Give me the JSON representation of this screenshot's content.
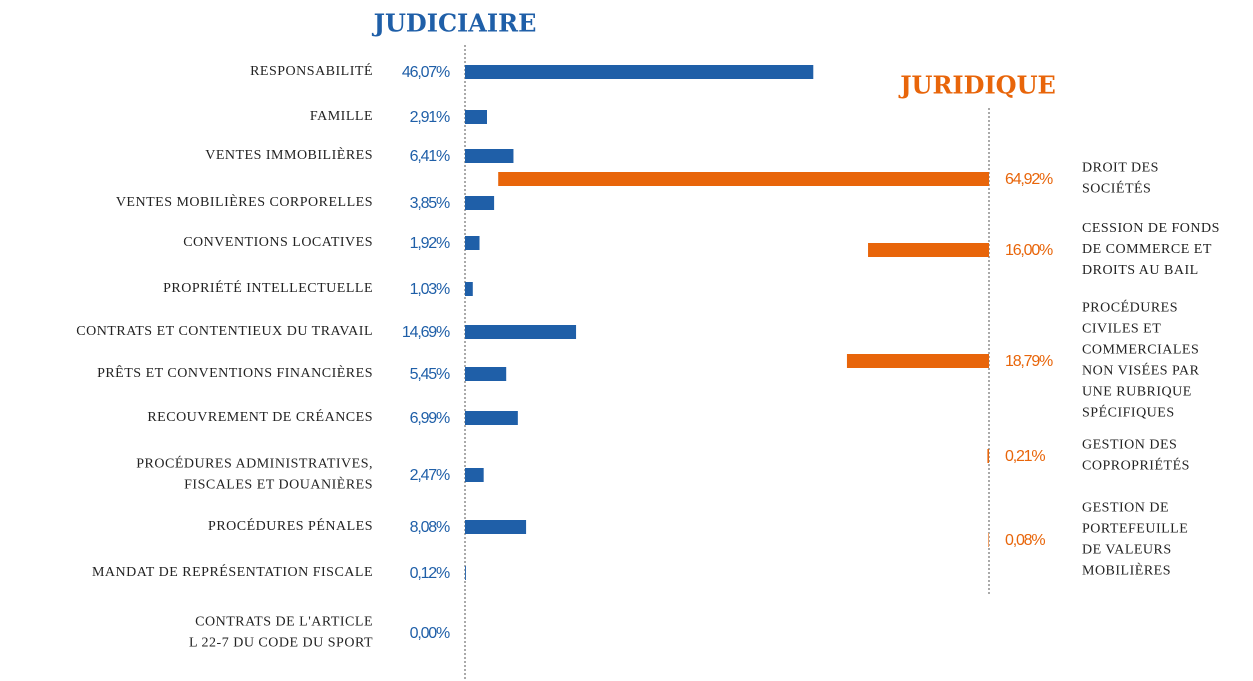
{
  "chart_data": [
    {
      "type": "bar",
      "title": "JUDICIAIRE",
      "color": "#1f5fa8",
      "categories": [
        "RESPONSABILITÉ",
        "FAMILLE",
        "VENTES IMMOBILIÈRES",
        "VENTES MOBILIÈRES CORPORELLES",
        "CONVENTIONS LOCATIVES",
        "PROPRIÉTÉ INTELLECTUELLE",
        "CONTRATS ET CONTENTIEUX DU TRAVAIL",
        "PRÊTS ET CONVENTIONS FINANCIÈRES",
        "RECOUVREMENT DE CRÉANCES",
        "PROCÉDURES ADMINISTRATIVES,\nFISCALES ET DOUANIÈRES",
        "PROCÉDURES PÉNALES",
        "MANDAT DE REPRÉSENTATION FISCALE",
        "CONTRATS DE L'ARTICLE\nL 22-7 DU CODE DU SPORT"
      ],
      "values": [
        46.07,
        2.91,
        6.41,
        3.85,
        1.92,
        1.03,
        14.69,
        5.45,
        6.99,
        2.47,
        8.08,
        0.12,
        0.0
      ],
      "value_labels": [
        "46,07%",
        "2,91%",
        "6,41%",
        "3,85%",
        "1,92%",
        "1,03%",
        "14,69%",
        "5,45%",
        "6,99%",
        "2,47%",
        "8,08%",
        "0,12%",
        "0,00%"
      ]
    },
    {
      "type": "bar",
      "title": "JURIDIQUE",
      "color": "#e8650a",
      "categories": [
        "DROIT DES\nSOCIÉTÉS",
        "CESSION DE FONDS\nDE COMMERCE ET\nDROITS AU BAIL",
        "PROCÉDURES\nCIVILES ET\nCOMMERCIALES\nNON VISÉES PAR\nUNE RUBRIQUE\nSPÉCIFIQUES",
        "GESTION DES\nCOPROPRIÉTÉS",
        "GESTION DE\nPORTEFEUILLE\nDE VALEURS\nMOBILIÈRES"
      ],
      "values": [
        64.92,
        16.0,
        18.79,
        0.21,
        0.08
      ],
      "value_labels": [
        "64,92%",
        "16,00%",
        "18,79%",
        "0,21%",
        "0,08%"
      ]
    }
  ]
}
